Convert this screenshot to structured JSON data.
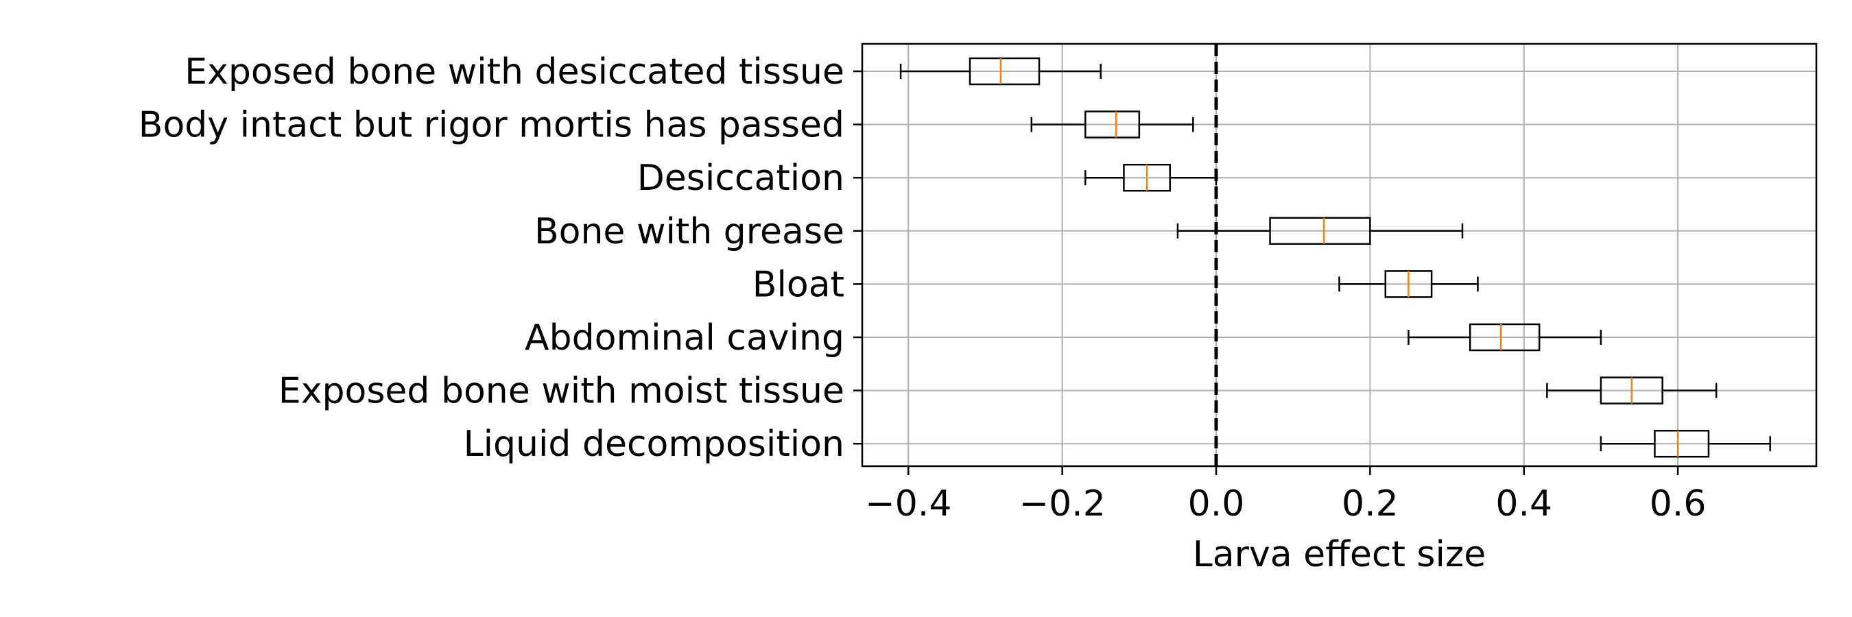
{
  "chart_data": {
    "type": "boxplot",
    "orientation": "horizontal",
    "title": "",
    "xlabel": "Larva effect size",
    "ylabel": "",
    "xlim": [
      -0.46,
      0.78
    ],
    "xticks": [
      -0.4,
      -0.2,
      0.0,
      0.2,
      0.4,
      0.6
    ],
    "xtick_labels": [
      "−0.4",
      "−0.2",
      "0.0",
      "0.2",
      "0.4",
      "0.6"
    ],
    "grid": true,
    "reference_line": {
      "x": 0.0,
      "style": "dashed"
    },
    "categories": [
      "Exposed bone with desiccated tissue",
      "Body intact but rigor mortis has passed",
      "Desiccation",
      "Bone with grease",
      "Bloat",
      "Abdominal caving",
      "Exposed bone with moist tissue",
      "Liquid decomposition"
    ],
    "boxes": [
      {
        "whislo": -0.41,
        "q1": -0.32,
        "med": -0.28,
        "q3": -0.23,
        "whishi": -0.15
      },
      {
        "whislo": -0.24,
        "q1": -0.17,
        "med": -0.13,
        "q3": -0.1,
        "whishi": -0.03
      },
      {
        "whislo": -0.17,
        "q1": -0.12,
        "med": -0.09,
        "q3": -0.06,
        "whishi": 0.0
      },
      {
        "whislo": -0.05,
        "q1": 0.07,
        "med": 0.14,
        "q3": 0.2,
        "whishi": 0.32
      },
      {
        "whislo": 0.16,
        "q1": 0.22,
        "med": 0.25,
        "q3": 0.28,
        "whishi": 0.34
      },
      {
        "whislo": 0.25,
        "q1": 0.33,
        "med": 0.37,
        "q3": 0.42,
        "whishi": 0.5
      },
      {
        "whislo": 0.43,
        "q1": 0.5,
        "med": 0.54,
        "q3": 0.58,
        "whishi": 0.65
      },
      {
        "whislo": 0.5,
        "q1": 0.57,
        "med": 0.6,
        "q3": 0.64,
        "whishi": 0.72
      }
    ],
    "colors": {
      "box": "#000000",
      "median": "#ff7f0e",
      "grid": "#b0b0b0"
    }
  }
}
